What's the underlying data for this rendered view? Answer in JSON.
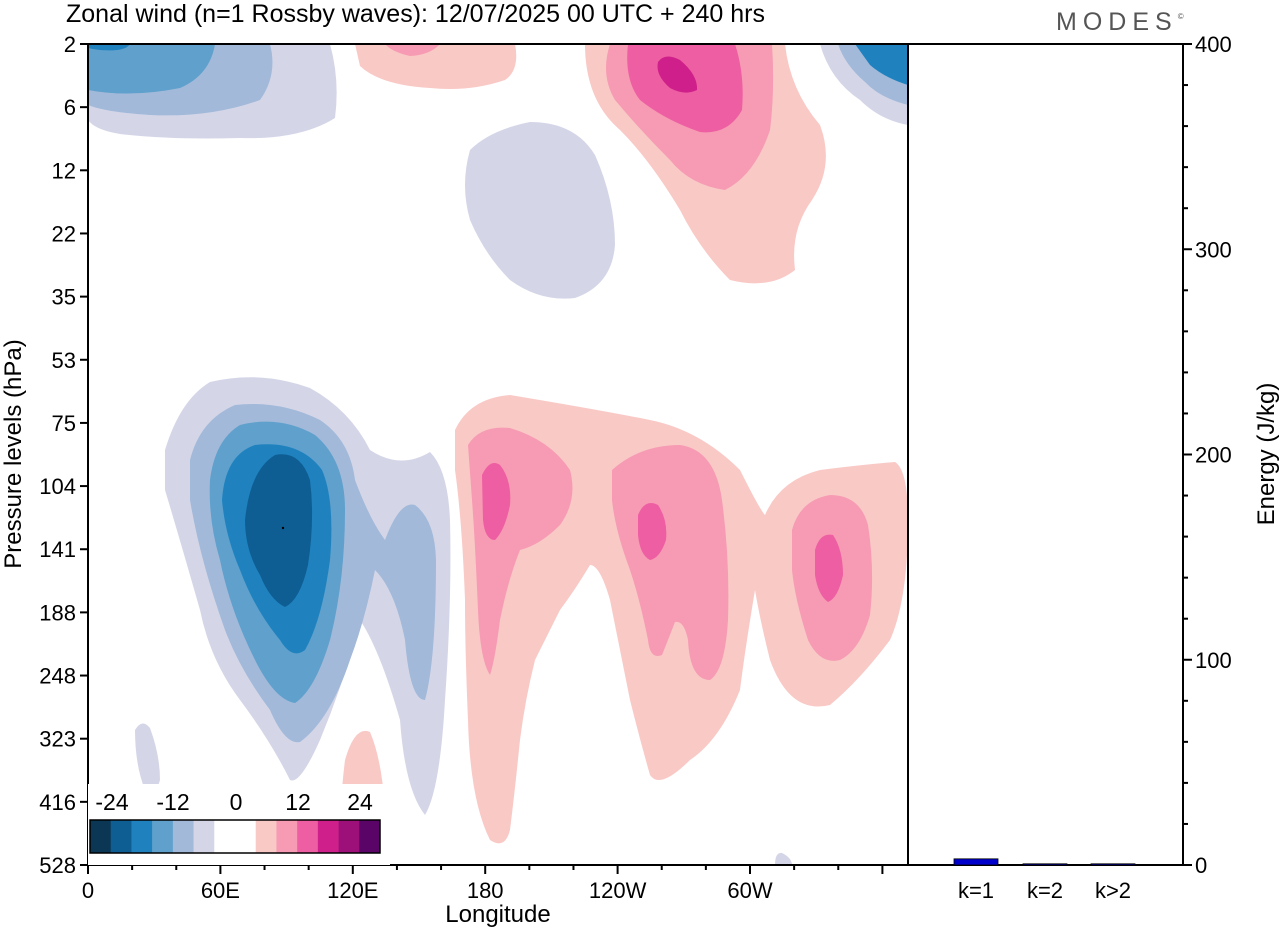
{
  "title": "Zonal wind (n=1 Rossby waves):  12/07/2025  00 UTC  + 240 hrs",
  "brand": "MODES",
  "brand_mark": "©",
  "colors": {
    "neg": [
      "#0b3654",
      "#0e5e94",
      "#1f82bf",
      "#5fa0cc",
      "#a2b9d9",
      "#d4d6e8"
    ],
    "zero": "#ffffff",
    "pos": [
      "#f9c9c6",
      "#f69bb3",
      "#ee5ea2",
      "#cf1f8a",
      "#9e1079",
      "#5a0467"
    ],
    "bar": "#0000cc"
  },
  "chart_data": [
    {
      "type": "heatmap",
      "title": "Zonal wind (n=1 Rossby waves):  12/07/2025  00 UTC  + 240 hrs",
      "xlabel": "Longitude",
      "ylabel": "Pressure levels (hPa)",
      "x_ticks": [
        "0",
        "60E",
        "120E",
        "180",
        "120W",
        "60W"
      ],
      "y_ticks": [
        "2",
        "6",
        "12",
        "22",
        "35",
        "53",
        "75",
        "104",
        "141",
        "188",
        "248",
        "323",
        "416",
        "528"
      ],
      "colorbar_labels": [
        "-24",
        "-12",
        "0",
        "12",
        "24"
      ],
      "features": [
        {
          "sign": "negative",
          "level": -20,
          "lon": 82,
          "pressure": 141
        },
        {
          "sign": "positive",
          "level": 12,
          "lon": 180,
          "pressure": 104
        },
        {
          "sign": "positive",
          "level": 12,
          "lon": 245,
          "pressure": 141
        },
        {
          "sign": "positive",
          "level": 12,
          "lon": 330,
          "pressure": 141
        },
        {
          "sign": "positive",
          "level": 20,
          "lon": 260,
          "pressure": 4
        },
        {
          "sign": "negative",
          "level": -8,
          "lon": 20,
          "pressure": 3
        },
        {
          "sign": "negative",
          "level": -4,
          "lon": 200,
          "pressure": 22
        }
      ]
    },
    {
      "type": "bar",
      "ylabel": "Energy (J/kg)",
      "ylim": [
        0,
        400
      ],
      "y_ticks": [
        "0",
        "100",
        "200",
        "300",
        "400"
      ],
      "categories": [
        "k=1",
        "k=2",
        "k>2"
      ],
      "values": [
        3,
        0.3,
        0.5
      ]
    }
  ]
}
